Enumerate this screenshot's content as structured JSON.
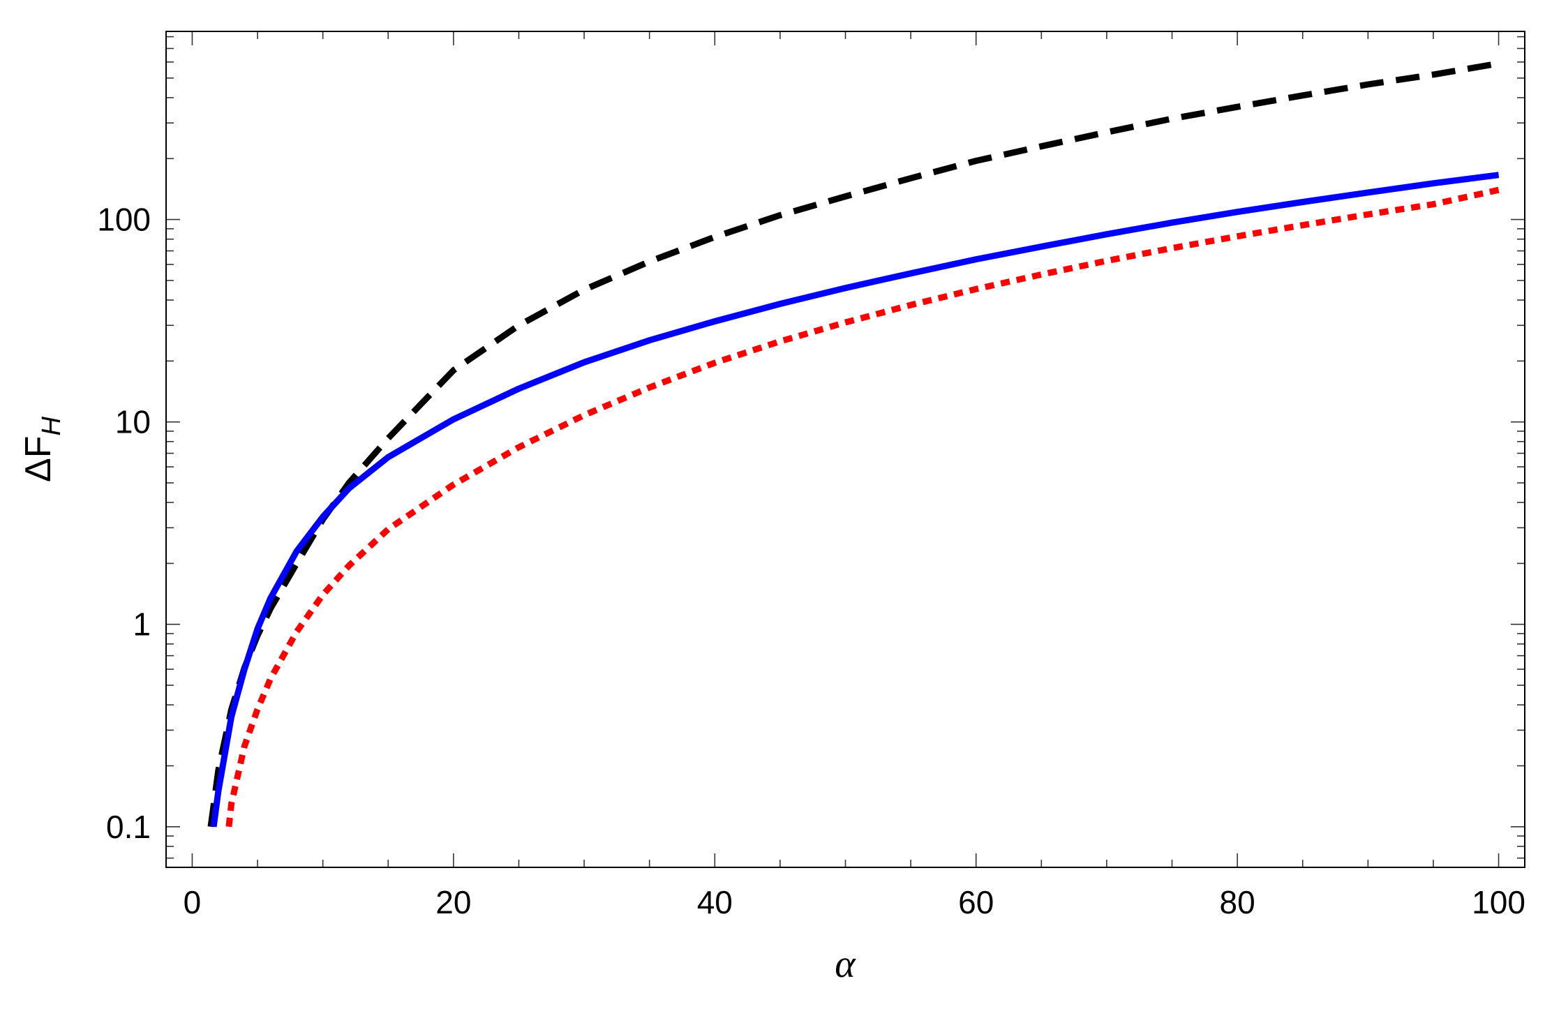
{
  "chart_data": {
    "type": "line",
    "title": "",
    "xlabel": "α",
    "ylabel": {
      "main": "ΔF",
      "sub": "H"
    },
    "xlim": [
      -2,
      102
    ],
    "ylim": [
      0.063,
      850
    ],
    "yscale": "log",
    "xticks": [
      0,
      20,
      40,
      60,
      80,
      100
    ],
    "xtick_labels": [
      "0",
      "20",
      "40",
      "60",
      "80",
      "100"
    ],
    "yticks": [
      0.1,
      1,
      10,
      100
    ],
    "ytick_labels": [
      "0.1",
      "1",
      "10",
      "100"
    ],
    "grid": false,
    "legend": "none",
    "series": [
      {
        "color": "#000000",
        "style": "dashed",
        "points": [
          [
            1.42,
            0.1
          ],
          [
            2,
            0.19
          ],
          [
            3,
            0.38
          ],
          [
            4,
            0.61
          ],
          [
            5,
            0.88
          ],
          [
            6,
            1.2
          ],
          [
            8,
            2.0
          ],
          [
            10,
            3.3
          ],
          [
            12,
            5.0
          ],
          [
            15,
            8.3
          ],
          [
            20,
            18
          ],
          [
            25,
            30
          ],
          [
            30,
            45
          ],
          [
            35,
            62
          ],
          [
            40,
            82
          ],
          [
            45,
            105
          ],
          [
            50,
            130
          ],
          [
            55,
            160
          ],
          [
            60,
            195
          ],
          [
            65,
            230
          ],
          [
            70,
            270
          ],
          [
            75,
            315
          ],
          [
            80,
            360
          ],
          [
            85,
            410
          ],
          [
            90,
            465
          ],
          [
            95,
            520
          ],
          [
            100,
            590
          ]
        ]
      },
      {
        "color": "#0000ff",
        "style": "solid",
        "points": [
          [
            1.64,
            0.1
          ],
          [
            2,
            0.15
          ],
          [
            3,
            0.35
          ],
          [
            4,
            0.6
          ],
          [
            5,
            0.95
          ],
          [
            6,
            1.35
          ],
          [
            8,
            2.3
          ],
          [
            10,
            3.4
          ],
          [
            12,
            4.7
          ],
          [
            15,
            6.7
          ],
          [
            20,
            10.3
          ],
          [
            25,
            14.6
          ],
          [
            30,
            19.7
          ],
          [
            35,
            25.3
          ],
          [
            40,
            31.4
          ],
          [
            45,
            38.3
          ],
          [
            50,
            45.9
          ],
          [
            55,
            54.2
          ],
          [
            60,
            63.6
          ],
          [
            65,
            73.5
          ],
          [
            70,
            84.6
          ],
          [
            75,
            96.5
          ],
          [
            80,
            109
          ],
          [
            85,
            122
          ],
          [
            90,
            136
          ],
          [
            95,
            151
          ],
          [
            100,
            166
          ]
        ]
      },
      {
        "color": "#ff0000",
        "style": "dotted",
        "points": [
          [
            2.8,
            0.1
          ],
          [
            3,
            0.13
          ],
          [
            4,
            0.25
          ],
          [
            5,
            0.38
          ],
          [
            6,
            0.54
          ],
          [
            8,
            0.92
          ],
          [
            10,
            1.4
          ],
          [
            12,
            1.95
          ],
          [
            15,
            2.95
          ],
          [
            20,
            4.9
          ],
          [
            25,
            7.5
          ],
          [
            30,
            10.8
          ],
          [
            35,
            14.8
          ],
          [
            40,
            19.6
          ],
          [
            45,
            25
          ],
          [
            50,
            31
          ],
          [
            55,
            37.8
          ],
          [
            60,
            45.3
          ],
          [
            65,
            53.5
          ],
          [
            70,
            62.5
          ],
          [
            75,
            72.2
          ],
          [
            80,
            82.6
          ],
          [
            85,
            93.8
          ],
          [
            90,
            106
          ],
          [
            95,
            119
          ],
          [
            100,
            140
          ]
        ]
      }
    ]
  }
}
